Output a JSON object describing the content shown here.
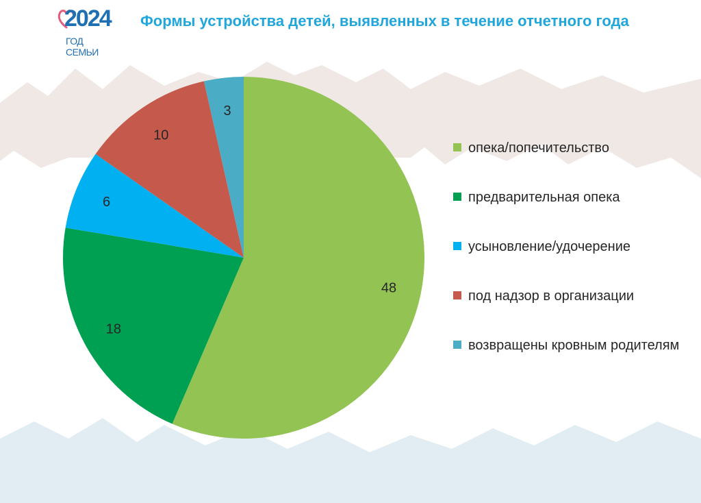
{
  "header": {
    "logo_year": "2024",
    "logo_subtitle": "ГОД СЕМЬИ",
    "title": "Формы устройства детей, выявленных в течение отчетного года"
  },
  "chart_data": {
    "type": "pie",
    "title": "Формы устройства детей, выявленных в течение отчетного года",
    "categories": [
      "опека/попечительство",
      "предварительная опека",
      "усыновление/удочерение",
      "под надзор в организации",
      "возвращены кровным родителям"
    ],
    "values": [
      48,
      18,
      6,
      10,
      3
    ],
    "colors": [
      "#92c353",
      "#00a052",
      "#00b0f0",
      "#c55a4c",
      "#4bacc6"
    ],
    "data_labels": [
      "48",
      "18",
      "6",
      "10",
      "3"
    ],
    "start": "12 o'clock",
    "direction": "clockwise",
    "legend_position": "right"
  },
  "legend": {
    "items": [
      {
        "label": "опека/попечительство",
        "color": "#92c353"
      },
      {
        "label": "предварительная опека",
        "color": "#00a052"
      },
      {
        "label": "усыновление/удочерение",
        "color": "#00b0f0"
      },
      {
        "label": "под надзор в организации",
        "color": "#c55a4c"
      },
      {
        "label": "возвращены кровным родителям",
        "color": "#4bacc6"
      }
    ]
  }
}
